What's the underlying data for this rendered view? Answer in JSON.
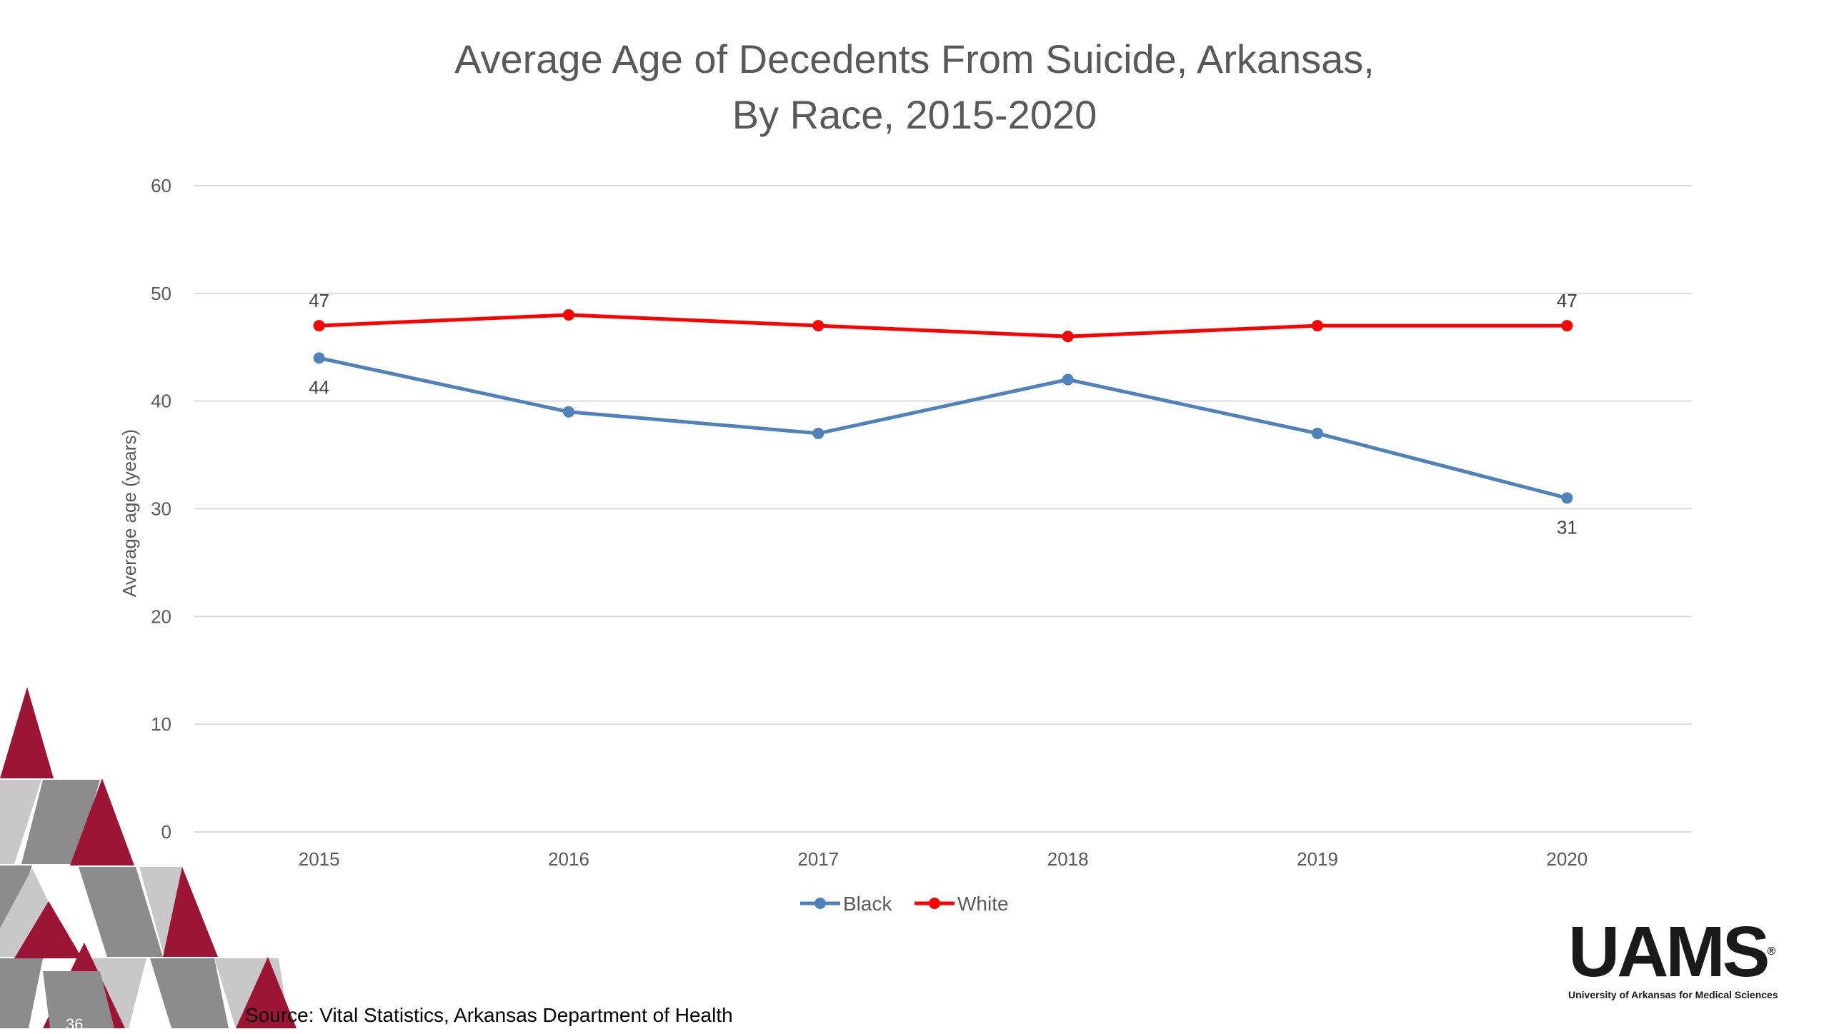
{
  "slide": {
    "title_line1": "Average Age of Decedents From Suicide, Arkansas,",
    "title_line2": "By Race, 2015-2020",
    "source": "Source: Vital Statistics, Arkansas Department of Health",
    "page_number": "36",
    "logo_text": "UAMS",
    "logo_registered": "®",
    "logo_subtitle": "University of Arkansas for Medical Sciences",
    "decor_colors": {
      "crimson": "#9d1535",
      "dark_gray": "#8c8c8c",
      "light_gray": "#c8c8c8"
    }
  },
  "chart_data": {
    "type": "line",
    "title": "Average Age of Decedents From Suicide, Arkansas, By Race, 2015-2020",
    "xlabel": "",
    "ylabel": "Average age (years)",
    "categories": [
      "2015",
      "2016",
      "2017",
      "2018",
      "2019",
      "2020"
    ],
    "ylim": [
      0,
      60
    ],
    "yticks": [
      0,
      10,
      20,
      30,
      40,
      50,
      60
    ],
    "grid": true,
    "legend_position": "bottom",
    "series": [
      {
        "name": "Black",
        "color": "#4f81bd",
        "values": [
          44,
          39,
          37,
          42,
          37,
          31
        ],
        "labeled_points": [
          0,
          5
        ],
        "label_position": "below"
      },
      {
        "name": "White",
        "color": "#ff0000",
        "values": [
          47,
          48,
          47,
          46,
          47,
          47
        ],
        "labeled_points": [
          0,
          5
        ],
        "label_position": "above"
      }
    ]
  }
}
